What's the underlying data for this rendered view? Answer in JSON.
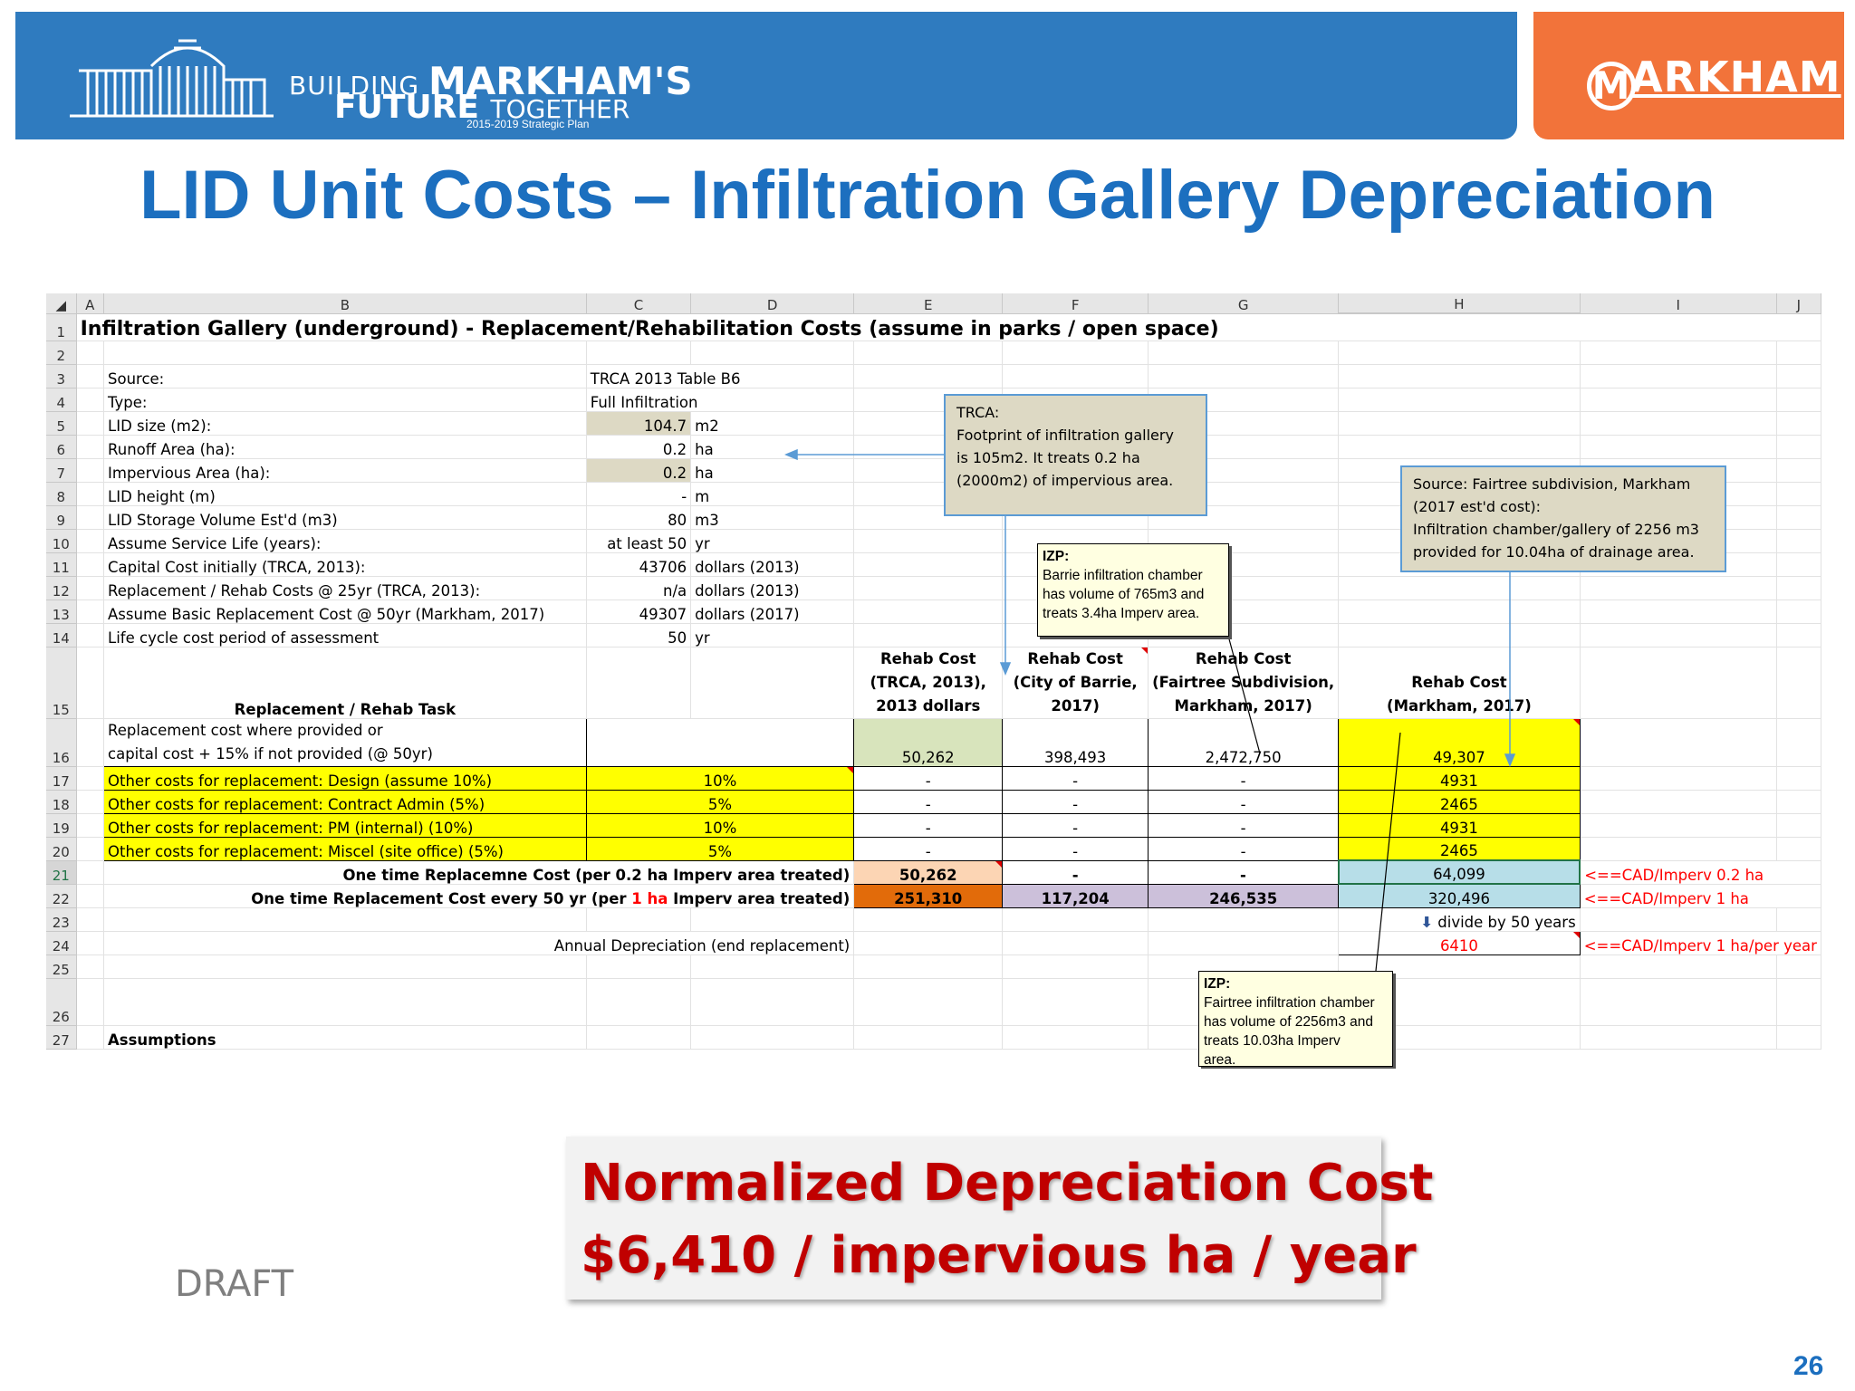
{
  "header": {
    "brand_line1_prefix": "BUILDING",
    "brand_line1_main": "MARKHAM'S",
    "brand_line2_main": "FUTURE",
    "brand_line2_suffix": "TOGETHER",
    "brand_line3": "2015-2019 Strategic Plan",
    "city_logo_m": "M",
    "city_logo_rest": "ARKHAM",
    "blue": "#2f7bbf",
    "orange": "#f2733a"
  },
  "slide_title": "LID Unit Costs – Infiltration Gallery Depreciation",
  "sheet": {
    "columns": [
      "A",
      "B",
      "C",
      "D",
      "E",
      "F",
      "G",
      "H",
      "I",
      "J"
    ],
    "rows": {
      "r1": {
        "title": "Infiltration Gallery (underground) - Replacement/Rehabilitation Costs (assume in parks / open space)"
      },
      "r3": {
        "label": "Source:",
        "value": "TRCA 2013 Table B6"
      },
      "r4": {
        "label": "Type:",
        "value": "Full Infiltration"
      },
      "r5": {
        "label": "LID size (m2):",
        "value": "104.7",
        "unit": "m2"
      },
      "r6": {
        "label": "Runoff Area (ha):",
        "value": "0.2",
        "unit": "ha"
      },
      "r7": {
        "label": "Impervious Area (ha):",
        "value": "0.2",
        "unit": "ha"
      },
      "r8": {
        "label": "LID height (m)",
        "value": "-",
        "unit": "m"
      },
      "r9": {
        "label": "LID Storage Volume Est'd (m3)",
        "value": "80",
        "unit": "m3"
      },
      "r10": {
        "label": "Assume Service Life (years):",
        "value": "at least 50",
        "unit": "yr"
      },
      "r11": {
        "label": "Capital Cost initially (TRCA, 2013):",
        "value": "43706",
        "unit": "dollars (2013)"
      },
      "r12": {
        "label": "Replacement / Rehab Costs @ 25yr (TRCA, 2013):",
        "value": "n/a",
        "unit": "dollars (2013)"
      },
      "r13": {
        "label": "Assume Basic Replacement Cost @ 50yr (Markham, 2017)",
        "value": "49307",
        "unit": "dollars (2017)"
      },
      "r14": {
        "label": "Life cycle cost period of assessment",
        "value": "50",
        "unit": "yr"
      },
      "r15": {
        "task": "Replacement / Rehab Task",
        "e_l1": "Rehab Cost",
        "e_l2": "(TRCA, 2013),",
        "e_l3": "2013 dollars",
        "f_l1": "Rehab Cost",
        "f_l2": "(City of Barrie,",
        "f_l3": "2017)",
        "g_l1": "Rehab Cost",
        "g_l2": "(Fairtree Subdivision,",
        "g_l3": "Markham, 2017)",
        "h_l1": "Rehab Cost",
        "h_l2": "(Markham, 2017)"
      },
      "r16": {
        "task_l1": "Replacement cost where provided or",
        "task_l2": "capital cost + 15% if not provided (@ 50yr)",
        "e": "50,262",
        "f": "398,493",
        "g": "2,472,750",
        "h": "49,307"
      },
      "r17": {
        "task": "Other costs for replacement: Design (assume 10%)",
        "pct": "10%",
        "e": "-",
        "f": "-",
        "g": "-",
        "h": "4931"
      },
      "r18": {
        "task": "Other costs for replacement: Contract Admin (5%)",
        "pct": "5%",
        "e": "-",
        "f": "-",
        "g": "-",
        "h": "2465"
      },
      "r19": {
        "task": "Other costs for replacement: PM (internal) (10%)",
        "pct": "10%",
        "e": "-",
        "f": "-",
        "g": "-",
        "h": "4931"
      },
      "r20": {
        "task": "Other costs for replacement: Miscel (site office) (5%)",
        "pct": "5%",
        "e": "-",
        "f": "-",
        "g": "-",
        "h": "2465"
      },
      "r21": {
        "label": "One time Replacemne Cost (per 0.2 ha Imperv area treated)",
        "e": "50,262",
        "f": "-",
        "g": "-",
        "h": "64,099",
        "note": "<==CAD/Imperv 0.2 ha"
      },
      "r22": {
        "label_a": "One time Replacement Cost every 50 yr (per",
        "label_red": "1 ha",
        "label_b": "Imperv area treated)",
        "e": "251,310",
        "f": "117,204",
        "g": "246,535",
        "h": "320,496",
        "note": "<==CAD/Imperv 1 ha"
      },
      "r23": {
        "note": "divide by 50 years"
      },
      "r24": {
        "label": "Annual Depreciation (end replacement)",
        "h": "6410",
        "note": "<==CAD/Imperv 1 ha/per year"
      },
      "r27": {
        "label": "Assumptions"
      }
    },
    "notes": {
      "trca": [
        "TRCA:",
        "Footprint of infiltration gallery",
        "is 105m2. It treats 0.2 ha",
        "(2000m2) of impervious area."
      ],
      "fairtree": [
        "Source: Fairtree subdivision, Markham",
        "(2017 est'd cost):",
        "Infiltration chamber/gallery of 2256 m3",
        "provided for 10.04ha of drainage area."
      ],
      "izp_barrie": {
        "head": "IZP:",
        "lines": [
          "Barrie infiltration chamber",
          "has volume of 765m3 and",
          "treats 3.4ha Imperv area."
        ]
      },
      "izp_fairtree": {
        "head": "IZP:",
        "lines": [
          "Fairtree infiltration chamber",
          "has volume of 2256m3 and",
          "treats 10.03ha Imperv",
          "area."
        ]
      }
    },
    "colors": {
      "tan": "#ddd9c4",
      "yellow": "#ffff00",
      "orange": "#e26b0a",
      "lavender": "#ccc0da",
      "light_blue": "#b7dee8",
      "peach": "#fcd5b4",
      "light_green": "#d8e4bc"
    }
  },
  "callout": {
    "line1": "Normalized Depreciation Cost",
    "line2": "$6,410 / impervious ha / year",
    "color": "#c00000"
  },
  "draft_label": "DRAFT",
  "page_number": "26"
}
